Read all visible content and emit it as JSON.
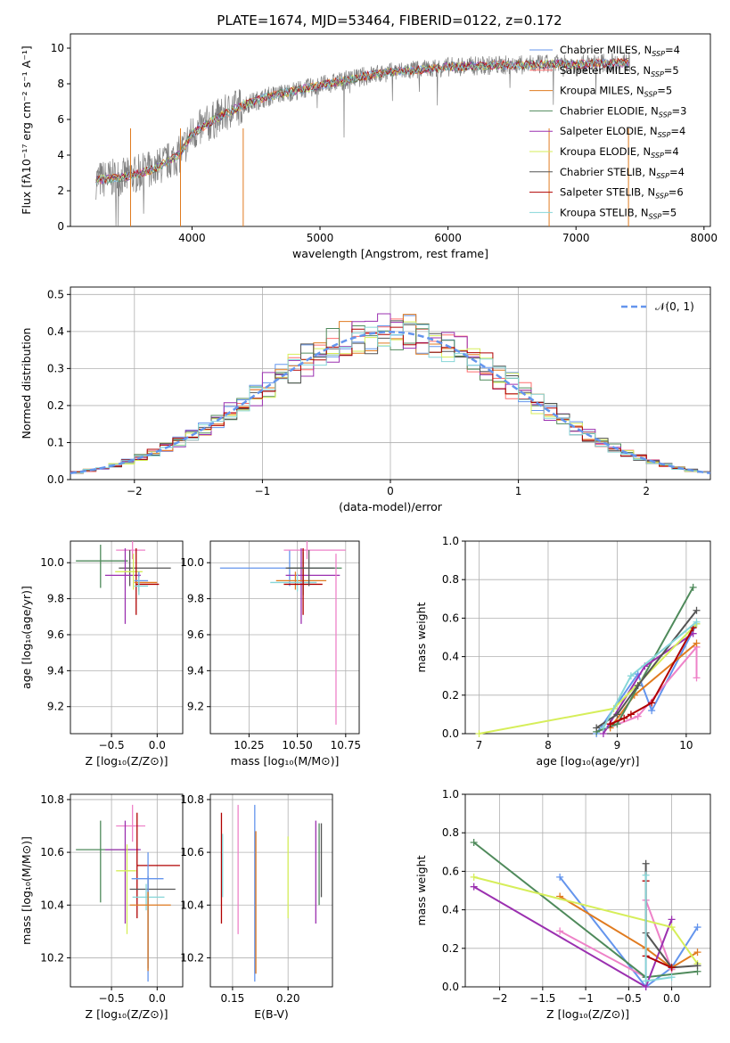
{
  "figure": {
    "title": "PLATE=1674, MJD=53464, FIBERID=0122, z=0.172"
  },
  "colors": {
    "Chabrier MILES": "#6495ed",
    "Salpeter MILES": "#ff6d6d",
    "Kroupa MILES": "#e07b20",
    "Chabrier ELODIE": "#4f8a5b",
    "Salpeter ELODIE": "#9b30b0",
    "Kroupa ELODIE": "#d6ee5a",
    "Chabrier STELIB": "#555555",
    "Salpeter STELIB": "#b00000",
    "Kroupa STELIB": "#86d6d8",
    "observed": "#808080",
    "grid": "#b0b0b0",
    "Kroupa MILES (pink)": "#ee82c8"
  },
  "chart_data": [
    {
      "id": "spectrum",
      "type": "line",
      "title": "PLATE=1674, MJD=53464, FIBERID=0122, z=0.172",
      "xlabel": "wavelength [Angstrom, rest frame]",
      "ylabel": "Flux [fλ10⁻¹⁷ erg cm⁻² s⁻¹ A⁻¹]",
      "xlim": [
        3050,
        8050
      ],
      "ylim": [
        0,
        10.8
      ],
      "xticks": [
        4000,
        5000,
        6000,
        7000,
        8000
      ],
      "yticks": [
        0,
        2,
        4,
        6,
        8,
        10
      ],
      "grid": false,
      "legend_position": "right",
      "continuum": {
        "x": [
          3250,
          3500,
          3700,
          3900,
          4000,
          4200,
          4400,
          4600,
          4800,
          5000,
          5200,
          5400,
          5600,
          5800,
          6000,
          6200,
          6400,
          6600,
          6800,
          7000,
          7200,
          7400
        ],
        "y": [
          2.6,
          2.8,
          3.2,
          4.0,
          5.2,
          6.1,
          6.8,
          7.3,
          7.6,
          7.9,
          8.2,
          8.5,
          8.7,
          8.8,
          8.95,
          9.0,
          9.05,
          9.05,
          9.1,
          9.1,
          9.15,
          9.2
        ]
      },
      "series": [
        {
          "name": "Chabrier MILES, N$_{SSP}$=4"
        },
        {
          "name": "Salpeter MILES, N$_{SSP}$=5"
        },
        {
          "name": "Kroupa MILES, N$_{SSP}$=5"
        },
        {
          "name": "Chabrier ELODIE, N$_{SSP}$=3"
        },
        {
          "name": "Salpeter ELODIE, N$_{SSP}$=4"
        },
        {
          "name": "Kroupa ELODIE, N$_{SSP}$=4"
        },
        {
          "name": "Chabrier STELIB, N$_{SSP}$=4"
        },
        {
          "name": "Salpeter STELIB, N$_{SSP}$=6"
        },
        {
          "name": "Kroupa STELIB, N$_{SSP}$=5"
        }
      ],
      "legend": [
        {
          "label": "Chabrier MILES, N",
          "sub": "SSP",
          "suffix": "=4"
        },
        {
          "label": "Salpeter MILES, N",
          "sub": "SSP",
          "suffix": "=5"
        },
        {
          "label": "Kroupa MILES, N",
          "sub": "SSP",
          "suffix": "=5"
        },
        {
          "label": "Chabrier ELODIE, N",
          "sub": "SSP",
          "suffix": "=3"
        },
        {
          "label": "Salpeter ELODIE, N",
          "sub": "SSP",
          "suffix": "=4"
        },
        {
          "label": "Kroupa ELODIE, N",
          "sub": "SSP",
          "suffix": "=4"
        },
        {
          "label": "Chabrier STELIB, N",
          "sub": "SSP",
          "suffix": "=4"
        },
        {
          "label": "Salpeter STELIB, N",
          "sub": "SSP",
          "suffix": "=6"
        },
        {
          "label": "Kroupa STELIB, N",
          "sub": "SSP",
          "suffix": "=5"
        }
      ]
    },
    {
      "id": "residuals",
      "type": "bar",
      "xlabel": "(data-model)/error",
      "ylabel": "Normed distribution",
      "xlim": [
        -2.5,
        2.5
      ],
      "ylim": [
        0,
        0.52
      ],
      "xticks": [
        -2,
        -1,
        0,
        1,
        2
      ],
      "yticks": [
        0.0,
        0.1,
        0.2,
        0.3,
        0.4,
        0.5
      ],
      "grid": true,
      "legend_position": "top-right",
      "legend": [
        "𝒩(0, 1)"
      ],
      "bin_edges_start": -2.5,
      "bin_width": 0.1
    },
    {
      "id": "age-vs-Z",
      "type": "scatter",
      "xlabel": "Z [log₁₀(Z/Z⊙)]",
      "ylabel": "age  [log₁₀(age/yr)]",
      "xlim": [
        -0.95,
        0.28
      ],
      "ylim": [
        9.05,
        10.12
      ],
      "xticks": [
        -0.5,
        0.0
      ],
      "yticks": [
        9.2,
        9.4,
        9.6,
        9.8,
        10.0
      ],
      "grid": true,
      "points": [
        {
          "x": -0.62,
          "y": 10.01,
          "xerr": [
            0.27,
            0.3
          ],
          "yerr": [
            0.15,
            0.09
          ],
          "c": "Chabrier ELODIE"
        },
        {
          "x": -0.27,
          "y": 10.07,
          "xerr": [
            0.18,
            0.14
          ],
          "yerr": [
            0.05,
            0.05
          ],
          "c": "Kroupa MILES (pink)"
        },
        {
          "x": -0.3,
          "y": 9.97,
          "xerr": [
            0.12,
            0.45
          ],
          "yerr": [
            0.1,
            0.1
          ],
          "c": "Chabrier STELIB"
        },
        {
          "x": -0.35,
          "y": 9.93,
          "xerr": [
            0.22,
            0.17
          ],
          "yerr": [
            0.27,
            0.15
          ],
          "c": "Salpeter ELODIE"
        },
        {
          "x": -0.33,
          "y": 9.1,
          "xerr": [
            0.0,
            0.0
          ],
          "yerr": [
            0.0,
            0.0
          ],
          "c": "Kroupa MILES (pink)"
        },
        {
          "x": -0.26,
          "y": 9.95,
          "xerr": [
            0.2,
            0.1
          ],
          "yerr": [
            0.1,
            0.1
          ],
          "c": "Kroupa ELODIE"
        },
        {
          "x": -0.23,
          "y": 9.88,
          "xerr": [
            0.0,
            0.25
          ],
          "yerr": [
            0.17,
            0.2
          ],
          "c": "Salpeter STELIB"
        },
        {
          "x": -0.2,
          "y": 9.89,
          "xerr": [
            0.05,
            0.2
          ],
          "yerr": [
            0.05,
            0.05
          ],
          "c": "Kroupa MILES"
        },
        {
          "x": -0.2,
          "y": 9.9,
          "xerr": [
            0.05,
            0.1
          ],
          "yerr": [
            0.05,
            0.05
          ],
          "c": "Chabrier MILES"
        },
        {
          "x": -0.2,
          "y": 9.87,
          "xerr": [
            0.05,
            0.1
          ],
          "yerr": [
            0.05,
            0.05
          ],
          "c": "Kroupa STELIB"
        }
      ]
    },
    {
      "id": "age-vs-mass",
      "type": "scatter",
      "xlabel": "mass [log₁₀(M/M⊙)]",
      "ylabel": "",
      "xlim": [
        10.05,
        10.82
      ],
      "ylim": [
        9.05,
        10.12
      ],
      "xticks": [
        10.25,
        10.5,
        10.75
      ],
      "yticks": [
        9.2,
        9.4,
        9.6,
        9.8,
        10.0
      ],
      "grid": true,
      "points": [
        {
          "x": 10.46,
          "y": 9.97,
          "xerr": [
            0.36,
            0.25
          ],
          "yerr": [
            0.1,
            0.1
          ],
          "c": "Chabrier MILES"
        },
        {
          "x": 10.55,
          "y": 10.07,
          "xerr": [
            0.12,
            0.2
          ],
          "yerr": [
            0.05,
            0.05
          ],
          "c": "Kroupa MILES (pink)"
        },
        {
          "x": 10.53,
          "y": 9.97,
          "xerr": [
            0.08,
            0.2
          ],
          "yerr": [
            0.15,
            0.09
          ],
          "c": "Chabrier ELODIE"
        },
        {
          "x": 10.52,
          "y": 9.93,
          "xerr": [
            0.08,
            0.2
          ],
          "yerr": [
            0.27,
            0.15
          ],
          "c": "Salpeter ELODIE"
        },
        {
          "x": 10.49,
          "y": 9.9,
          "xerr": [
            0.1,
            0.16
          ],
          "yerr": [
            0.05,
            0.05
          ],
          "c": "Kroupa MILES"
        },
        {
          "x": 10.5,
          "y": 9.89,
          "xerr": [
            0.14,
            0.1
          ],
          "yerr": [
            0.05,
            0.05
          ],
          "c": "Kroupa STELIB"
        },
        {
          "x": 10.53,
          "y": 9.88,
          "xerr": [
            0.1,
            0.1
          ],
          "yerr": [
            0.17,
            0.2
          ],
          "c": "Salpeter STELIB"
        },
        {
          "x": 10.7,
          "y": 9.85,
          "xerr": [
            0.0,
            0.0
          ],
          "yerr": [
            0.75,
            0.2
          ],
          "c": "Kroupa MILES (pink)"
        },
        {
          "x": 10.56,
          "y": 9.97,
          "xerr": [
            0.12,
            0.13
          ],
          "yerr": [
            0.1,
            0.1
          ],
          "c": "Chabrier STELIB"
        }
      ]
    },
    {
      "id": "massweight-vs-age",
      "type": "line",
      "xlabel": "age  [log₁₀(age/yr)]",
      "ylabel": "mass weight",
      "xlim": [
        6.8,
        10.35
      ],
      "ylim": [
        0,
        1.0
      ],
      "xticks": [
        7,
        8,
        9,
        10
      ],
      "yticks": [
        0.0,
        0.2,
        0.4,
        0.6,
        0.8,
        1.0
      ],
      "grid": true,
      "series": [
        {
          "c": "Chabrier MILES",
          "x": [
            8.7,
            9.3,
            9.5,
            10.15
          ],
          "y": [
            0.0,
            0.31,
            0.12,
            0.57
          ]
        },
        {
          "c": "Kroupa MILES (pink)",
          "x": [
            8.8,
            9.3,
            10.15,
            10.15
          ],
          "y": [
            0.02,
            0.09,
            0.45,
            0.29
          ]
        },
        {
          "c": "Kroupa MILES",
          "x": [
            8.9,
            9.25,
            10.15
          ],
          "y": [
            0.03,
            0.2,
            0.47
          ]
        },
        {
          "c": "Chabrier ELODIE",
          "x": [
            8.7,
            9.0,
            10.1
          ],
          "y": [
            0.01,
            0.05,
            0.76
          ]
        },
        {
          "c": "Salpeter ELODIE",
          "x": [
            8.8,
            9.4,
            10.1
          ],
          "y": [
            0.0,
            0.35,
            0.52
          ]
        },
        {
          "c": "Kroupa ELODIE",
          "x": [
            7.0,
            8.95,
            10.15
          ],
          "y": [
            0.0,
            0.13,
            0.57
          ]
        },
        {
          "c": "Chabrier STELIB",
          "x": [
            8.7,
            9.0,
            9.3,
            10.15
          ],
          "y": [
            0.03,
            0.1,
            0.25,
            0.64
          ]
        },
        {
          "c": "Salpeter STELIB",
          "x": [
            8.9,
            9.1,
            9.2,
            9.5,
            10.1
          ],
          "y": [
            0.05,
            0.08,
            0.1,
            0.16,
            0.55
          ]
        },
        {
          "c": "Kroupa STELIB",
          "x": [
            8.8,
            9.2,
            10.15
          ],
          "y": [
            0.03,
            0.3,
            0.58
          ]
        }
      ]
    },
    {
      "id": "mass-vs-Z",
      "type": "scatter",
      "xlabel": "Z [log₁₀(Z/Z⊙)]",
      "ylabel": "mass [log₁₀(M/M⊙)]",
      "xlim": [
        -0.95,
        0.28
      ],
      "ylim": [
        10.09,
        10.82
      ],
      "xticks": [
        -0.5,
        0.0
      ],
      "yticks": [
        10.2,
        10.4,
        10.6,
        10.8
      ],
      "grid": true,
      "points": [
        {
          "x": -0.62,
          "y": 10.61,
          "xerr": [
            0.27,
            0.3
          ],
          "yerr": [
            0.2,
            0.11
          ],
          "c": "Chabrier ELODIE"
        },
        {
          "x": -0.27,
          "y": 10.7,
          "xerr": [
            0.18,
            0.14
          ],
          "yerr": [
            0.06,
            0.08
          ],
          "c": "Kroupa MILES (pink)"
        },
        {
          "x": -0.35,
          "y": 10.61,
          "xerr": [
            0.22,
            0.17
          ],
          "yerr": [
            0.28,
            0.11
          ],
          "c": "Salpeter ELODIE"
        },
        {
          "x": -0.33,
          "y": 10.53,
          "xerr": [
            0.12,
            0.1
          ],
          "yerr": [
            0.24,
            0.1
          ],
          "c": "Kroupa ELODIE"
        },
        {
          "x": -0.22,
          "y": 10.55,
          "xerr": [
            0.0,
            0.47
          ],
          "yerr": [
            0.2,
            0.2
          ],
          "c": "Salpeter STELIB"
        },
        {
          "x": -0.1,
          "y": 10.46,
          "xerr": [
            0.2,
            0.3
          ],
          "yerr": [
            0.3,
            0.05
          ],
          "c": "Chabrier STELIB"
        },
        {
          "x": -0.1,
          "y": 10.5,
          "xerr": [
            0.18,
            0.17
          ],
          "yerr": [
            0.39,
            0.1
          ],
          "c": "Chabrier MILES"
        },
        {
          "x": -0.12,
          "y": 10.43,
          "xerr": [
            0.15,
            0.2
          ],
          "yerr": [
            0.05,
            0.05
          ],
          "c": "Kroupa STELIB"
        },
        {
          "x": -0.1,
          "y": 10.4,
          "xerr": [
            0.2,
            0.25
          ],
          "yerr": [
            0.25,
            0.05
          ],
          "c": "Kroupa MILES"
        }
      ]
    },
    {
      "id": "mass-vs-ebv",
      "type": "scatter",
      "xlabel": "E(B-V)",
      "ylabel": "",
      "xlim": [
        0.13,
        0.24
      ],
      "ylim": [
        10.09,
        10.82
      ],
      "xticks": [
        0.15,
        0.2
      ],
      "yticks": [
        10.2,
        10.4,
        10.6,
        10.8
      ],
      "grid": true,
      "points": [
        {
          "x": 0.14,
          "y": 10.55,
          "yerr": [
            0.22,
            0.2
          ],
          "c": "Salpeter STELIB"
        },
        {
          "x": 0.141,
          "y": 10.55,
          "yerr": [
            0.12,
            0.12
          ],
          "c": "Kroupa STELIB"
        },
        {
          "x": 0.155,
          "y": 10.55,
          "yerr": [
            0.26,
            0.23
          ],
          "c": "Kroupa MILES (pink)"
        },
        {
          "x": 0.17,
          "y": 10.5,
          "yerr": [
            0.39,
            0.28
          ],
          "c": "Chabrier MILES"
        },
        {
          "x": 0.171,
          "y": 10.4,
          "yerr": [
            0.26,
            0.28
          ],
          "c": "Kroupa MILES"
        },
        {
          "x": 0.2,
          "y": 10.53,
          "yerr": [
            0.18,
            0.13
          ],
          "c": "Kroupa ELODIE"
        },
        {
          "x": 0.225,
          "y": 10.53,
          "yerr": [
            0.2,
            0.19
          ],
          "c": "Salpeter ELODIE"
        },
        {
          "x": 0.228,
          "y": 10.55,
          "yerr": [
            0.15,
            0.16
          ],
          "c": "Chabrier ELODIE"
        },
        {
          "x": 0.23,
          "y": 10.55,
          "yerr": [
            0.12,
            0.16
          ],
          "c": "Chabrier STELIB"
        }
      ]
    },
    {
      "id": "massweight-vs-Z",
      "type": "line",
      "xlabel": "Z [log₁₀(Z/Z⊙)]",
      "ylabel": "mass weight",
      "xlim": [
        -2.4,
        0.45
      ],
      "ylim": [
        0,
        1.0
      ],
      "xticks": [
        -2.0,
        -1.5,
        -1.0,
        -0.5,
        0.0
      ],
      "yticks": [
        0.0,
        0.2,
        0.4,
        0.6,
        0.8,
        1.0
      ],
      "grid": true,
      "series": [
        {
          "c": "Chabrier MILES",
          "x": [
            -1.3,
            -0.3,
            0.0,
            0.3
          ],
          "y": [
            0.57,
            0.0,
            0.1,
            0.31
          ]
        },
        {
          "c": "Kroupa MILES (pink)",
          "x": [
            -1.3,
            -0.3,
            -0.3,
            0.0
          ],
          "y": [
            0.29,
            0.05,
            0.45,
            0.09
          ]
        },
        {
          "c": "Kroupa MILES",
          "x": [
            -1.3,
            -0.3,
            0.0,
            0.3
          ],
          "y": [
            0.47,
            0.2,
            0.1,
            0.18
          ]
        },
        {
          "c": "Chabrier ELODIE",
          "x": [
            -2.3,
            -0.3,
            0.3
          ],
          "y": [
            0.75,
            0.05,
            0.08
          ]
        },
        {
          "c": "Salpeter ELODIE",
          "x": [
            -2.3,
            -0.3,
            0.0
          ],
          "y": [
            0.52,
            0.0,
            0.35
          ]
        },
        {
          "c": "Kroupa ELODIE",
          "x": [
            -2.3,
            0.0,
            0.3
          ],
          "y": [
            0.57,
            0.31,
            0.12
          ]
        },
        {
          "c": "Chabrier STELIB",
          "x": [
            -0.3,
            -0.3,
            0.0,
            0.3
          ],
          "y": [
            0.64,
            0.28,
            0.1,
            0.11
          ]
        },
        {
          "c": "Salpeter STELIB",
          "x": [
            -0.3,
            -0.3,
            0.0
          ],
          "y": [
            0.55,
            0.16,
            0.1
          ]
        },
        {
          "c": "Kroupa STELIB",
          "x": [
            -0.3,
            -0.3,
            0.0
          ],
          "y": [
            0.58,
            0.03,
            0.05
          ]
        }
      ]
    }
  ]
}
